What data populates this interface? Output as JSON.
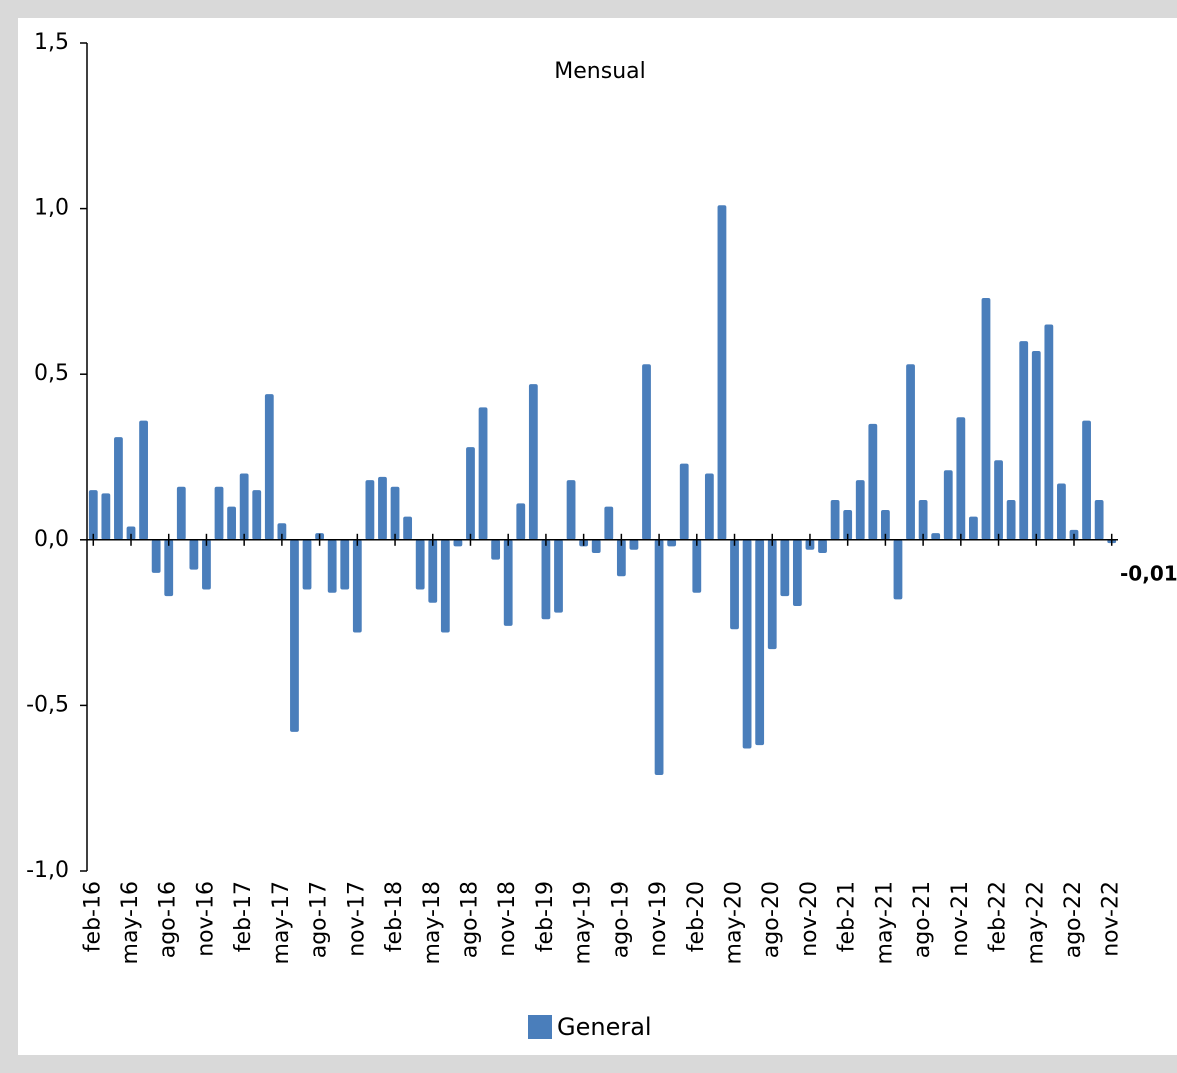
{
  "chart_data": {
    "type": "bar",
    "title": "Mensual",
    "categories": [
      "feb-16",
      null,
      null,
      "may-16",
      null,
      null,
      "ago-16",
      null,
      null,
      "nov-16",
      null,
      null,
      "feb-17",
      null,
      null,
      "may-17",
      null,
      null,
      "ago-17",
      null,
      null,
      "nov-17",
      null,
      null,
      "feb-18",
      null,
      null,
      "may-18",
      null,
      null,
      "ago-18",
      null,
      null,
      "nov-18",
      null,
      null,
      "feb-19",
      null,
      null,
      "may-19",
      null,
      null,
      "ago-19",
      null,
      null,
      "nov-19",
      null,
      null,
      "feb-20",
      null,
      null,
      "may-20",
      null,
      null,
      "ago-20",
      null,
      null,
      "nov-20",
      null,
      null,
      "feb-21",
      null,
      null,
      "may-21",
      null,
      null,
      "ago-21",
      null,
      null,
      "nov-21",
      null,
      null,
      "feb-22",
      null,
      null,
      "may-22",
      null,
      null,
      "ago-22",
      null,
      null,
      "nov-22"
    ],
    "series": [
      {
        "name": "General",
        "color": "#4a7ebb",
        "values": [
          0.15,
          0.14,
          0.31,
          0.04,
          0.36,
          -0.1,
          -0.17,
          0.16,
          -0.09,
          -0.15,
          0.16,
          0.1,
          0.2,
          0.15,
          0.44,
          0.05,
          -0.58,
          -0.15,
          0.02,
          -0.16,
          -0.15,
          -0.28,
          0.18,
          0.19,
          0.16,
          0.07,
          -0.15,
          -0.19,
          -0.28,
          -0.02,
          0.28,
          0.4,
          -0.06,
          -0.26,
          0.11,
          0.47,
          -0.24,
          -0.22,
          0.18,
          -0.02,
          -0.04,
          0.1,
          -0.11,
          -0.03,
          0.53,
          -0.71,
          -0.02,
          0.23,
          -0.16,
          0.2,
          1.01,
          -0.27,
          -0.63,
          -0.62,
          -0.33,
          -0.17,
          -0.2,
          -0.03,
          -0.04,
          0.12,
          0.09,
          0.18,
          0.35,
          0.09,
          -0.18,
          0.53,
          0.12,
          0.02,
          0.21,
          0.37,
          0.07,
          0.73,
          0.24,
          0.12,
          0.6,
          0.57,
          0.65,
          0.17,
          0.03,
          0.36,
          0.12,
          -0.01
        ],
        "value_labels": [
          null,
          null,
          null,
          null,
          null,
          null,
          null,
          null,
          null,
          null,
          null,
          null,
          null,
          null,
          null,
          null,
          null,
          null,
          null,
          null,
          null,
          null,
          null,
          null,
          null,
          null,
          null,
          null,
          null,
          null,
          null,
          null,
          null,
          null,
          null,
          null,
          null,
          null,
          null,
          null,
          null,
          null,
          null,
          null,
          null,
          null,
          null,
          null,
          null,
          null,
          null,
          null,
          null,
          null,
          null,
          null,
          null,
          null,
          null,
          null,
          null,
          null,
          null,
          null,
          null,
          null,
          null,
          null,
          null,
          null,
          null,
          null,
          null,
          null,
          null,
          null,
          null,
          null,
          null,
          null,
          null,
          "-0,01"
        ]
      }
    ],
    "ylim": [
      -1.0,
      1.5
    ],
    "yticks": [
      {
        "value": -1.0,
        "label": "-1,0"
      },
      {
        "value": -0.5,
        "label": "-0,5"
      },
      {
        "value": 0,
        "label": "0,0"
      },
      {
        "value": 0.5,
        "label": "0,5"
      },
      {
        "value": 1.0,
        "label": "1,0"
      },
      {
        "value": 1.5,
        "label": "1,5"
      }
    ],
    "legend": "bottom"
  }
}
